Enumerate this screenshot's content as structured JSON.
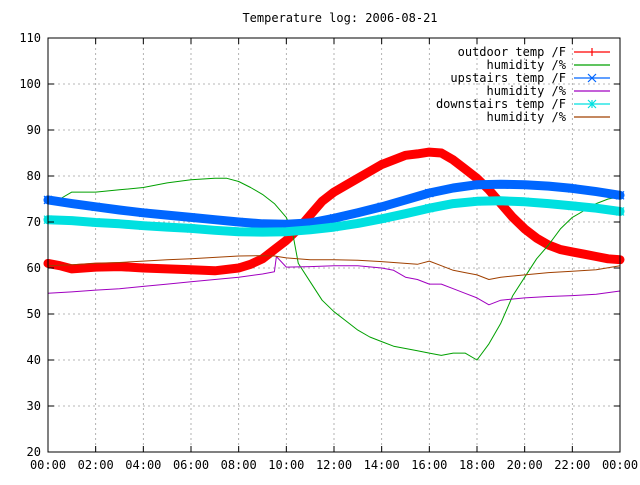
{
  "chart_data": {
    "type": "line",
    "title": "Temperature log: 2006-08-21",
    "xlabel": "",
    "ylabel": "",
    "xlim": [
      "00:00",
      "24:00"
    ],
    "ylim": [
      20,
      110
    ],
    "grid": true,
    "legend_position": "top-right",
    "x_ticks": [
      "00:00",
      "02:00",
      "04:00",
      "06:00",
      "08:00",
      "10:00",
      "12:00",
      "14:00",
      "16:00",
      "18:00",
      "20:00",
      "22:00",
      "00:00"
    ],
    "y_ticks": [
      20,
      30,
      40,
      50,
      60,
      70,
      80,
      90,
      100,
      110
    ],
    "series": [
      {
        "name": "outdoor temp /F",
        "color": "#ff0000",
        "marker": "plus",
        "x": [
          "00:00",
          "00:30",
          "01:00",
          "01:30",
          "02:00",
          "03:00",
          "04:00",
          "05:00",
          "06:00",
          "07:00",
          "08:00",
          "08:30",
          "09:00",
          "09:30",
          "10:00",
          "10:30",
          "11:00",
          "11:30",
          "12:00",
          "12:30",
          "13:00",
          "13:30",
          "14:00",
          "14:30",
          "15:00",
          "15:30",
          "16:00",
          "16:30",
          "17:00",
          "17:30",
          "18:00",
          "18:30",
          "19:00",
          "19:30",
          "20:00",
          "20:30",
          "21:00",
          "21:30",
          "22:00",
          "22:30",
          "23:00",
          "23:30",
          "24:00"
        ],
        "y": [
          61,
          60.5,
          59.8,
          60,
          60.2,
          60.3,
          60,
          59.8,
          59.6,
          59.4,
          60,
          60.8,
          62,
          64,
          66,
          68.5,
          71.5,
          74.5,
          76.5,
          78,
          79.5,
          81,
          82.5,
          83.5,
          84.5,
          84.8,
          85.2,
          85,
          83.5,
          81.5,
          79.5,
          77,
          74,
          71,
          68.5,
          66.5,
          65,
          64,
          63.5,
          63,
          62.5,
          62,
          61.8
        ]
      },
      {
        "name": "humidity /%",
        "color": "#00a000",
        "marker": "line",
        "x": [
          "00:00",
          "00:30",
          "01:00",
          "02:00",
          "03:00",
          "04:00",
          "05:00",
          "06:00",
          "07:00",
          "07:30",
          "08:00",
          "08:30",
          "09:00",
          "09:30",
          "10:00",
          "10:15",
          "10:30",
          "11:00",
          "11:30",
          "12:00",
          "12:30",
          "13:00",
          "13:30",
          "14:00",
          "14:30",
          "15:00",
          "15:30",
          "16:00",
          "16:30",
          "17:00",
          "17:30",
          "18:00",
          "18:30",
          "19:00",
          "19:30",
          "20:00",
          "20:30",
          "21:00",
          "21:30",
          "22:00",
          "22:30",
          "23:00",
          "23:30",
          "24:00"
        ],
        "y": [
          74,
          75,
          76.5,
          76.5,
          77,
          77.5,
          78.5,
          79.2,
          79.5,
          79.5,
          78.8,
          77.5,
          76,
          74,
          71,
          68,
          61,
          57,
          53,
          50.5,
          48.5,
          46.5,
          45,
          44,
          43,
          42.5,
          42,
          41.5,
          41,
          41.5,
          41.5,
          40,
          43.5,
          48,
          54,
          58,
          62,
          65,
          68.5,
          71,
          72.5,
          74,
          75,
          75.5
        ]
      },
      {
        "name": "upstairs temp /F",
        "color": "#0066ff",
        "marker": "x",
        "x": [
          "00:00",
          "01:00",
          "02:00",
          "03:00",
          "04:00",
          "05:00",
          "06:00",
          "07:00",
          "08:00",
          "09:00",
          "10:00",
          "11:00",
          "12:00",
          "13:00",
          "14:00",
          "15:00",
          "16:00",
          "17:00",
          "18:00",
          "19:00",
          "20:00",
          "21:00",
          "22:00",
          "23:00",
          "24:00"
        ],
        "y": [
          74.8,
          74,
          73.3,
          72.6,
          72,
          71.5,
          71,
          70.5,
          70,
          69.6,
          69.5,
          69.8,
          70.8,
          72,
          73.3,
          74.8,
          76.3,
          77.4,
          78.1,
          78.2,
          78.1,
          77.8,
          77.3,
          76.6,
          75.8
        ]
      },
      {
        "name": "humidity /%",
        "color": "#a000c0",
        "marker": "line",
        "x": [
          "00:00",
          "01:00",
          "02:00",
          "03:00",
          "04:00",
          "05:00",
          "06:00",
          "07:00",
          "08:00",
          "09:00",
          "09:30",
          "09:35",
          "10:00",
          "11:00",
          "12:00",
          "13:00",
          "14:00",
          "14:30",
          "15:00",
          "15:30",
          "16:00",
          "16:30",
          "17:00",
          "17:30",
          "18:00",
          "18:30",
          "19:00",
          "20:00",
          "21:00",
          "22:00",
          "23:00",
          "24:00"
        ],
        "y": [
          54.5,
          54.8,
          55.2,
          55.5,
          56,
          56.5,
          57,
          57.5,
          58,
          58.7,
          59.2,
          62.5,
          60.2,
          60.3,
          60.5,
          60.5,
          60,
          59.5,
          58,
          57.5,
          56.5,
          56.5,
          55.5,
          54.5,
          53.5,
          52,
          53,
          53.5,
          53.8,
          54,
          54.3,
          55
        ]
      },
      {
        "name": "downstairs temp /F",
        "color": "#00e0e0",
        "marker": "asterisk",
        "x": [
          "00:00",
          "01:00",
          "02:00",
          "03:00",
          "04:00",
          "05:00",
          "06:00",
          "07:00",
          "08:00",
          "09:00",
          "10:00",
          "11:00",
          "12:00",
          "13:00",
          "14:00",
          "15:00",
          "16:00",
          "17:00",
          "18:00",
          "19:00",
          "20:00",
          "21:00",
          "22:00",
          "23:00",
          "24:00"
        ],
        "y": [
          70.5,
          70.3,
          69.9,
          69.6,
          69.2,
          68.9,
          68.6,
          68.2,
          67.9,
          67.8,
          67.9,
          68.3,
          68.9,
          69.7,
          70.7,
          71.8,
          73,
          74,
          74.5,
          74.6,
          74.4,
          74,
          73.5,
          73,
          72.3
        ]
      },
      {
        "name": "humidity /%",
        "color": "#a04000",
        "marker": "line",
        "x": [
          "00:00",
          "01:00",
          "02:00",
          "03:00",
          "04:00",
          "05:00",
          "06:00",
          "07:00",
          "08:00",
          "09:00",
          "09:30",
          "10:00",
          "11:00",
          "12:00",
          "13:00",
          "14:00",
          "15:00",
          "15:30",
          "16:00",
          "16:30",
          "17:00",
          "17:30",
          "18:00",
          "18:30",
          "19:00",
          "20:00",
          "21:00",
          "22:00",
          "23:00",
          "24:00"
        ],
        "y": [
          60.5,
          60.7,
          61,
          61.2,
          61.5,
          61.8,
          62,
          62.3,
          62.6,
          62.7,
          62.6,
          62.2,
          61.8,
          61.8,
          61.7,
          61.4,
          61,
          60.8,
          61.5,
          60.5,
          59.5,
          59,
          58.5,
          57.5,
          58,
          58.5,
          59,
          59.3,
          59.6,
          60.5
        ]
      }
    ]
  }
}
